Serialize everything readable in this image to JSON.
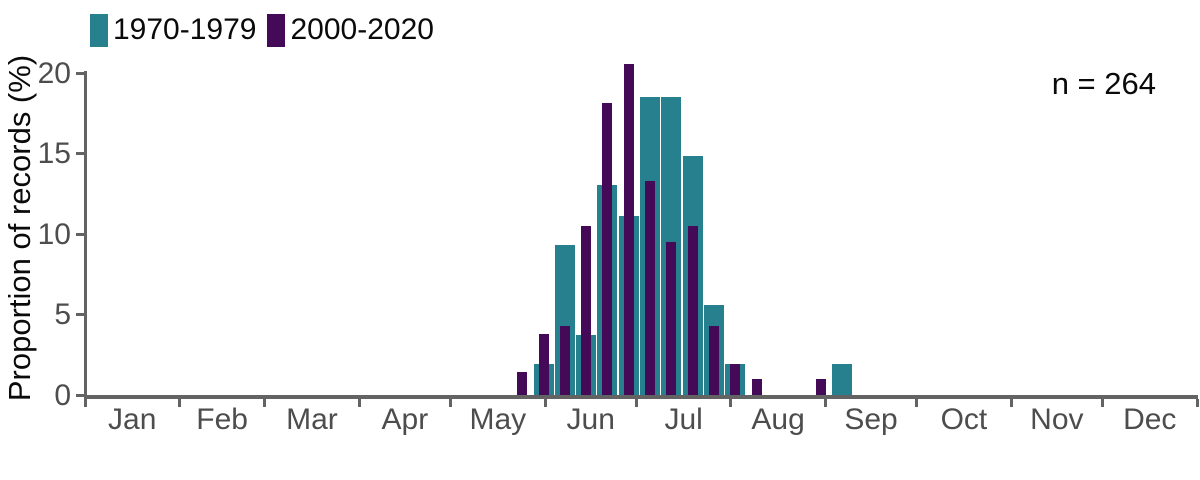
{
  "figure": {
    "annotation": "n = 264",
    "colors": {
      "series_1970s": "#26808D",
      "series_2000s": "#440A57",
      "axis": "#636363",
      "tick_text": "#4D4D4D",
      "text": "#0A0A0A",
      "background": "#FFFFFF"
    }
  },
  "legend": {
    "position": "top-left",
    "items": [
      {
        "label": "1970-1979",
        "color": "#26808D"
      },
      {
        "label": "2000-2020",
        "color": "#440A57"
      }
    ]
  },
  "chart_data": {
    "type": "bar",
    "title": "",
    "xlabel": "",
    "ylabel": "Proportion of records (%)",
    "annotation": "n = 264",
    "ylim": [
      0,
      20
    ],
    "yticks": [
      0,
      5,
      10,
      15,
      20
    ],
    "grid": false,
    "legend_position": "top-left",
    "x_axis_type": "date, Jan 1 to Dec 31, ticks at month boundaries",
    "month_labels": [
      "Jan",
      "Feb",
      "Mar",
      "Apr",
      "May",
      "Jun",
      "Jul",
      "Aug",
      "Sep",
      "Oct",
      "Nov",
      "Dec"
    ],
    "month_days": [
      31,
      28,
      31,
      30,
      31,
      30,
      31,
      31,
      30,
      31,
      30,
      31
    ],
    "bin": "week of year",
    "weeks": [
      21,
      22,
      23,
      24,
      25,
      26,
      27,
      28,
      29,
      30,
      31,
      32,
      35,
      36
    ],
    "week_center_day_of_year": [
      143.5,
      150.5,
      157.5,
      164.5,
      171.5,
      178.5,
      185.5,
      192.5,
      199.5,
      206.5,
      213.5,
      220.5,
      241.5,
      248.5
    ],
    "series": [
      {
        "name": "1970-1979",
        "color": "#26808D",
        "values": [
          0,
          1.9,
          9.3,
          3.7,
          13.0,
          11.1,
          18.5,
          18.5,
          14.8,
          5.6,
          1.9,
          0,
          0,
          1.9
        ]
      },
      {
        "name": "2000-2020",
        "color": "#440A57",
        "values": [
          1.4,
          3.8,
          4.3,
          10.5,
          18.1,
          20.5,
          13.3,
          9.5,
          10.5,
          4.3,
          1.9,
          1.0,
          1.0,
          0
        ]
      }
    ]
  }
}
